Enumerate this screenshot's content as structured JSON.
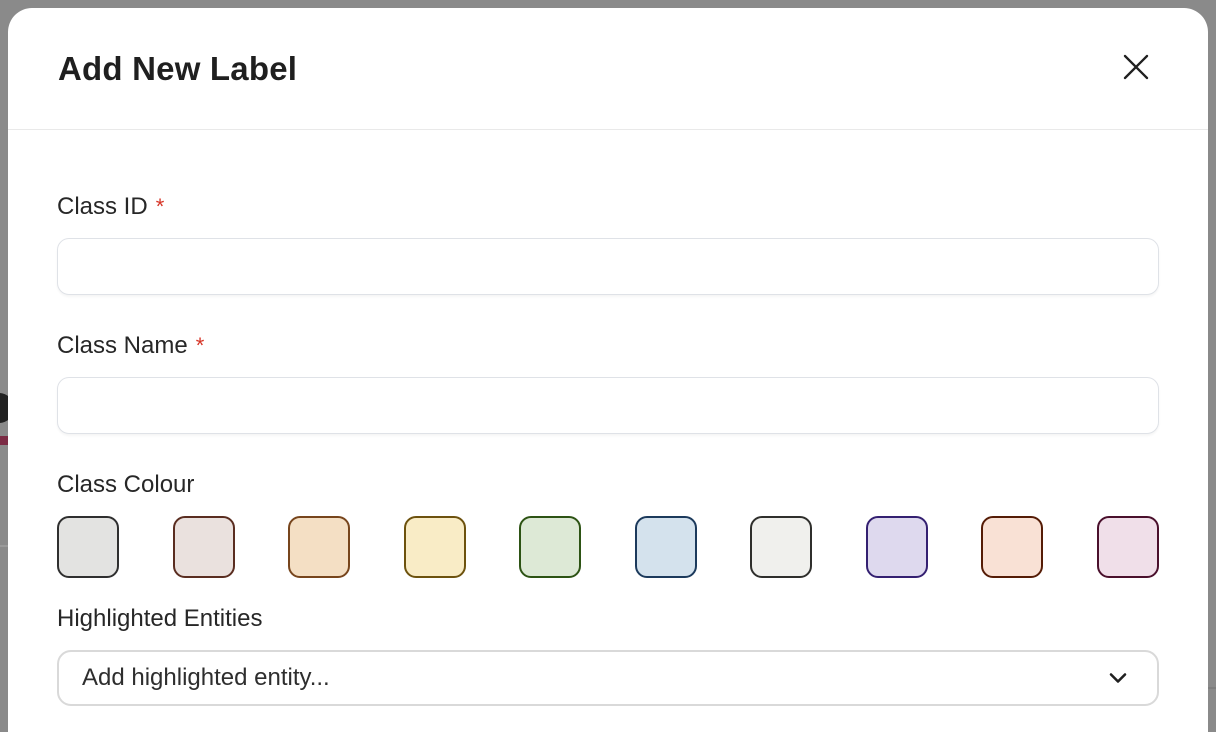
{
  "dialog": {
    "title": "Add New Label"
  },
  "fields": {
    "class_id": {
      "label": "Class ID",
      "required_marker": "*",
      "value": ""
    },
    "class_name": {
      "label": "Class Name",
      "required_marker": "*",
      "value": ""
    },
    "class_colour": {
      "label": "Class Colour",
      "swatches": [
        {
          "name": "grey",
          "fill": "#e3e3e1",
          "border": "#2f2f2f"
        },
        {
          "name": "rosewood",
          "fill": "#eae1de",
          "border": "#5a2d20"
        },
        {
          "name": "peach",
          "fill": "#f4dfc4",
          "border": "#77451c"
        },
        {
          "name": "cream",
          "fill": "#f9ecc6",
          "border": "#6d520e"
        },
        {
          "name": "green",
          "fill": "#dde9d6",
          "border": "#2d5314"
        },
        {
          "name": "blue",
          "fill": "#d4e2ed",
          "border": "#1c3a5c"
        },
        {
          "name": "offwhite",
          "fill": "#f0f0ed",
          "border": "#2f2f2c"
        },
        {
          "name": "lavender",
          "fill": "#ded9ee",
          "border": "#342071"
        },
        {
          "name": "salmon",
          "fill": "#f9e1d5",
          "border": "#551c06"
        },
        {
          "name": "pink",
          "fill": "#f0dfe9",
          "border": "#4a102c"
        }
      ]
    },
    "highlighted_entities": {
      "label": "Highlighted Entities",
      "placeholder": "Add highlighted entity..."
    }
  },
  "icons": {
    "close": "close-icon",
    "chevron": "chevron-down-icon"
  },
  "colors": {
    "overlay": "#8a8a8a",
    "required_asterisk": "#d63426",
    "header_divider": "#e9e9e9",
    "input_border": "#dfe2e7",
    "select_border": "#d9d9d9",
    "title_text": "#1f1f1f",
    "label_text": "#272727",
    "background_band": "#7b2b44"
  }
}
